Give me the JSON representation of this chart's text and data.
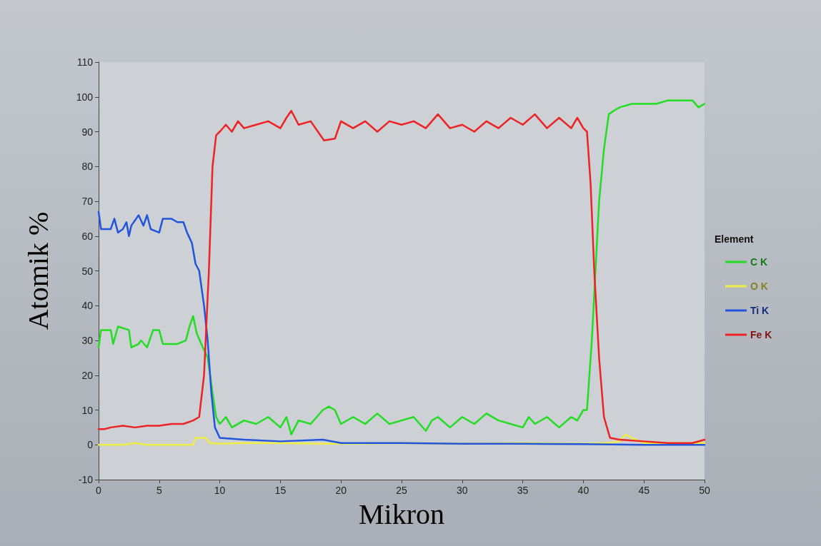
{
  "chart_data": {
    "type": "line",
    "xlabel": "Mikron",
    "ylabel": "Atomik %",
    "legend_title": "Element",
    "legend": "right",
    "grid": false,
    "marker": "none",
    "line_style": "solid",
    "xlim": [
      0,
      50
    ],
    "xticks": [
      0,
      5,
      10,
      15,
      20,
      25,
      30,
      35,
      40,
      45,
      50
    ],
    "ylim": [
      -10,
      110
    ],
    "yticks": [
      -10,
      0,
      10,
      20,
      30,
      40,
      50,
      60,
      70,
      80,
      90,
      100,
      110
    ],
    "series": [
      {
        "name": "C K",
        "color": "#22dd22",
        "x": [
          0,
          0.2,
          1,
          1.2,
          1.6,
          2.5,
          2.7,
          3.3,
          3.5,
          4,
          4.5,
          5,
          5.3,
          6.5,
          7.2,
          7.5,
          7.8,
          8.1,
          8.6,
          9,
          9.4,
          9.7,
          10,
          10.5,
          11,
          12,
          13,
          14,
          15,
          15.5,
          15.9,
          16.5,
          17.5,
          18.5,
          19,
          19.5,
          20,
          21,
          22,
          23,
          24,
          25,
          26,
          27,
          27.5,
          28,
          29,
          30,
          31,
          32,
          33,
          34,
          35,
          35.5,
          36,
          37,
          38,
          39,
          39.5,
          40,
          40.3,
          40.7,
          41,
          41.3,
          41.7,
          42.1,
          42.5,
          43,
          44,
          45,
          46,
          47,
          48,
          49,
          49.5,
          50
        ],
        "values": [
          28,
          33,
          33,
          29,
          34,
          33,
          28,
          29,
          30,
          28,
          33,
          33,
          29,
          29,
          30,
          34,
          37,
          32,
          28,
          25,
          15,
          8,
          6,
          8,
          5,
          7,
          6,
          8,
          5,
          8,
          3,
          7,
          6,
          10,
          11,
          10,
          6,
          8,
          6,
          9,
          6,
          7,
          8,
          4,
          7,
          8,
          5,
          8,
          6,
          9,
          7,
          6,
          5,
          8,
          6,
          8,
          5,
          8,
          7,
          10,
          10,
          30,
          50,
          70,
          85,
          95,
          96,
          97,
          98,
          98,
          98,
          99,
          99,
          99,
          97,
          98
        ]
      },
      {
        "name": "O K",
        "color": "#eeee44",
        "x": [
          0,
          2,
          3,
          4,
          7.8,
          8,
          8.8,
          9.2,
          10,
          12,
          15,
          18,
          20,
          25,
          30,
          35,
          40,
          42,
          43,
          43.5,
          44,
          45,
          47,
          50
        ],
        "values": [
          0,
          0,
          0.5,
          0,
          0,
          2,
          2,
          0.5,
          0.3,
          0.5,
          0.5,
          0.3,
          0.3,
          0.5,
          0.3,
          0.5,
          0.3,
          0.5,
          1,
          3,
          2,
          0.5,
          0.5,
          0.5
        ]
      },
      {
        "name": "Ti K",
        "color": "#2255dd",
        "x": [
          0,
          0.2,
          1,
          1.3,
          1.6,
          2,
          2.3,
          2.5,
          2.7,
          3.3,
          3.7,
          4,
          4.3,
          5,
          5.3,
          6,
          6.5,
          7,
          7.3,
          7.7,
          8,
          8.3,
          8.7,
          9,
          9.3,
          9.6,
          10,
          12,
          15,
          18.5,
          20,
          25,
          30,
          35,
          40,
          45,
          50
        ],
        "values": [
          67,
          62,
          62,
          65,
          61,
          62,
          64,
          60,
          63,
          66,
          63,
          66,
          62,
          61,
          65,
          65,
          64,
          64,
          61,
          58,
          52,
          50,
          40,
          30,
          15,
          5,
          2,
          1.5,
          1,
          1.5,
          0.5,
          0.5,
          0.3,
          0.3,
          0.2,
          0,
          0
        ]
      },
      {
        "name": "Fe K",
        "color": "#ee2222",
        "x": [
          0,
          0.5,
          1,
          2,
          3,
          4,
          5,
          6,
          7,
          7.8,
          8.3,
          8.7,
          9.1,
          9.4,
          9.7,
          10,
          10.5,
          11,
          11.5,
          12,
          13,
          14,
          15,
          15.5,
          15.9,
          16.5,
          17.5,
          18.6,
          19.5,
          20,
          21,
          22,
          23,
          24,
          25,
          26,
          27,
          28,
          29,
          30,
          31,
          32,
          33,
          34,
          35,
          36,
          37,
          38,
          39,
          39.5,
          40,
          40.3,
          40.6,
          40.9,
          41.3,
          41.7,
          42.2,
          43,
          45,
          47,
          49,
          50
        ],
        "values": [
          4.5,
          4.5,
          5,
          5.5,
          5,
          5.5,
          5.5,
          6,
          6,
          7,
          8,
          20,
          50,
          80,
          89,
          90,
          92,
          90,
          93,
          91,
          92,
          93,
          91,
          94,
          96,
          92,
          93,
          87.5,
          88,
          93,
          91,
          93,
          90,
          93,
          92,
          93,
          91,
          95,
          91,
          92,
          90,
          93,
          91,
          94,
          92,
          95,
          91,
          94,
          91,
          94,
          91,
          90,
          75,
          50,
          25,
          8,
          2,
          1.5,
          1,
          0.5,
          0.5,
          1.5
        ]
      }
    ]
  }
}
